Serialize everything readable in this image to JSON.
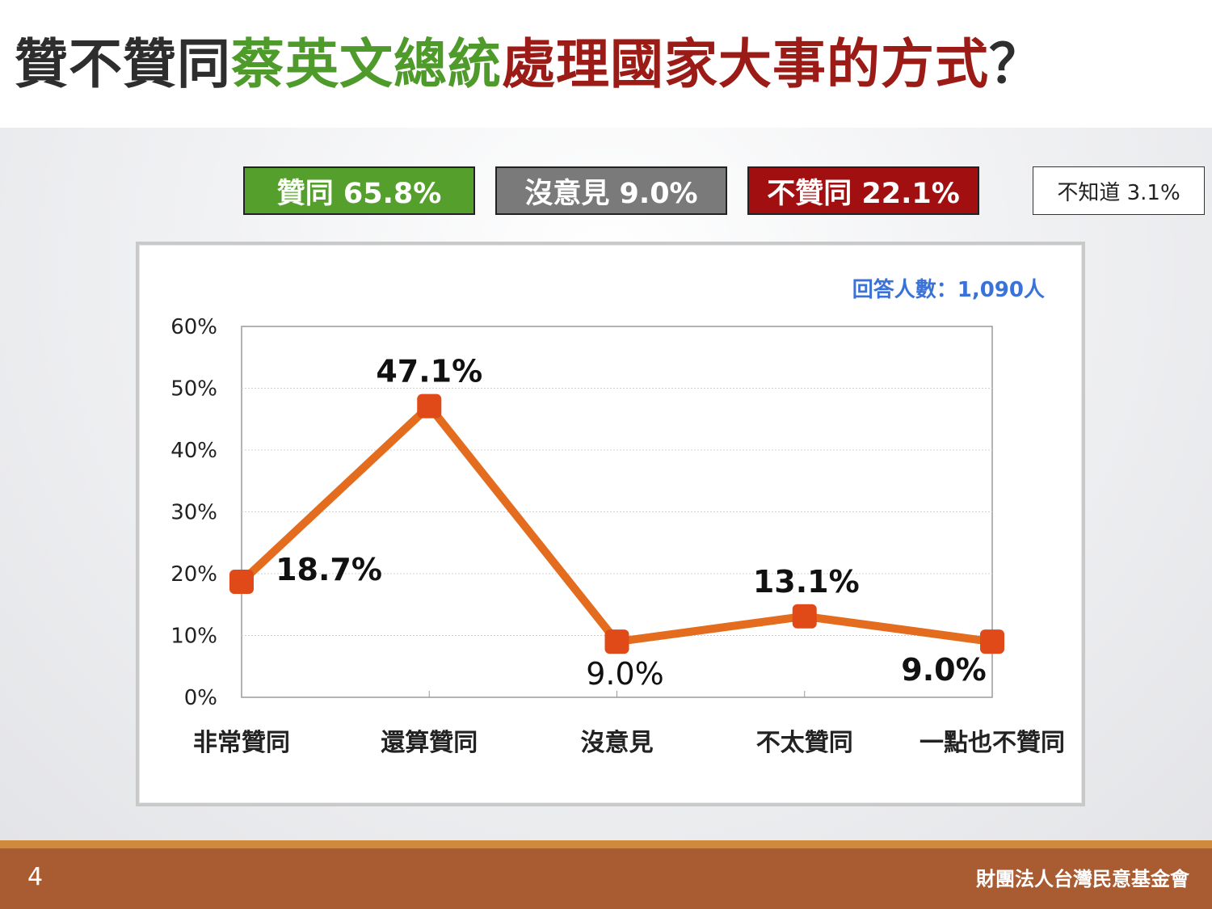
{
  "title": {
    "parts": [
      {
        "text": "贊不贊同",
        "color": "#2e2e2e"
      },
      {
        "text": "蔡英文總統",
        "color": "#4e9a2a"
      },
      {
        "text": "處理國家大事的方式",
        "color": "#9b1b17"
      },
      {
        "text": "？",
        "color": "#2e2e2e"
      }
    ]
  },
  "summary": [
    {
      "label": "贊同 65.8%",
      "bg": "#55a02c"
    },
    {
      "label": "沒意見 9.0%",
      "bg": "#7a7a7a"
    },
    {
      "label": "不贊同 22.1%",
      "bg": "#a10f10"
    },
    {
      "label": "不知道 3.1%",
      "bg": "#ffffff"
    }
  ],
  "respondents": "回答人數：1,090人",
  "chart_data": {
    "type": "line",
    "categories": [
      "非常贊同",
      "還算贊同",
      "沒意見",
      "不太贊同",
      "一點也不贊同"
    ],
    "values": [
      18.7,
      47.1,
      9.0,
      13.1,
      9.0
    ],
    "value_labels": [
      "18.7%",
      "47.1%",
      "9.0%",
      "13.1%",
      "9.0%"
    ],
    "y_ticks": [
      "0%",
      "10%",
      "20%",
      "30%",
      "40%",
      "50%",
      "60%"
    ],
    "ylim": [
      0,
      60
    ],
    "grid": true,
    "line_color": "#e36c1e",
    "marker_color": "#e04a18"
  },
  "footer": {
    "page_number": "4",
    "organization": "財團法人台灣民意基金會"
  }
}
